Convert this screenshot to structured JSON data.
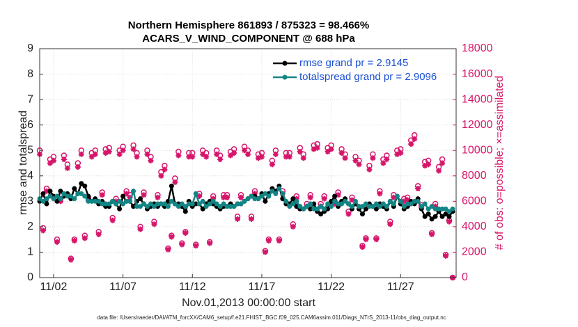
{
  "chart_data": {
    "type": "line",
    "title": "Northern Hemisphere 861893 / 875323 = 98.466%",
    "subtitle": "ACARS_V_WIND_COMPONENT @ 688 hPa",
    "xlabel": "Nov.01,2013 00:00:00 start",
    "ylabel": "rmse and totalspread",
    "y2label": "# of obs: o=possible; ×=assimilated",
    "footnote": "data file: /Users/raeder/DAI/ATM_forcXX/CAM6_setup/f.e21.FHIST_BGC.f09_025.CAM6assim.011/Diags_NTrS_2013-11/obs_diag_output.nc",
    "xlim": [
      1,
      31
    ],
    "xticks": [
      {
        "value": 2,
        "label": "11/02"
      },
      {
        "value": 7,
        "label": "11/07"
      },
      {
        "value": 12,
        "label": "11/12"
      },
      {
        "value": 17,
        "label": "11/17"
      },
      {
        "value": 22,
        "label": "11/22"
      },
      {
        "value": 27,
        "label": "11/27"
      }
    ],
    "ylim": [
      0,
      9
    ],
    "yticks": [
      0,
      1,
      2,
      3,
      4,
      5,
      6,
      7,
      8,
      9
    ],
    "y2lim": [
      0,
      18000
    ],
    "y2ticks": [
      0,
      2000,
      4000,
      6000,
      8000,
      10000,
      12000,
      14000,
      16000,
      18000
    ],
    "y2color": "#d6166b",
    "grid": true,
    "legend": "upper right",
    "x": [
      1,
      1.25,
      1.5,
      1.75,
      2,
      2.25,
      2.5,
      2.75,
      3,
      3.25,
      3.5,
      3.75,
      4,
      4.25,
      4.5,
      4.75,
      5,
      5.25,
      5.5,
      5.75,
      6,
      6.25,
      6.5,
      6.75,
      7,
      7.25,
      7.5,
      7.75,
      8,
      8.25,
      8.5,
      8.75,
      9,
      9.25,
      9.5,
      9.75,
      10,
      10.25,
      10.5,
      10.75,
      11,
      11.25,
      11.5,
      11.75,
      12,
      12.25,
      12.5,
      12.75,
      13,
      13.25,
      13.5,
      13.75,
      14,
      14.25,
      14.5,
      14.75,
      15,
      15.25,
      15.5,
      15.75,
      16,
      16.25,
      16.5,
      16.75,
      17,
      17.25,
      17.5,
      17.75,
      18,
      18.25,
      18.5,
      18.75,
      19,
      19.25,
      19.5,
      19.75,
      20,
      20.25,
      20.5,
      20.75,
      21,
      21.25,
      21.5,
      21.75,
      22,
      22.25,
      22.5,
      22.75,
      23,
      23.25,
      23.5,
      23.75,
      24,
      24.25,
      24.5,
      24.75,
      25,
      25.25,
      25.5,
      25.75,
      26,
      26.25,
      26.5,
      26.75,
      27,
      27.25,
      27.5,
      27.75,
      28,
      28.25,
      28.5,
      28.75,
      29,
      29.25,
      29.5,
      29.75,
      30,
      30.25,
      30.5,
      30.75
    ],
    "series": [
      {
        "name": "rmse grand pr = 2.9145",
        "color": "#000000",
        "marker": "dot",
        "values": [
          3.0,
          3.3,
          2.9,
          3.4,
          3.2,
          3.0,
          3.4,
          3.2,
          3.3,
          3.1,
          3.5,
          3.3,
          3.7,
          3.6,
          3.2,
          3.0,
          3.1,
          2.9,
          3.0,
          2.8,
          2.8,
          3.0,
          2.9,
          2.7,
          3.2,
          3.0,
          3.0,
          2.8,
          3.0,
          3.1,
          2.9,
          2.7,
          2.8,
          2.9,
          2.8,
          2.9,
          2.8,
          3.0,
          3.6,
          2.9,
          2.9,
          2.8,
          2.6,
          3.0,
          2.8,
          2.9,
          2.9,
          2.7,
          2.9,
          3.0,
          2.9,
          2.8,
          2.7,
          2.8,
          2.8,
          2.9,
          2.8,
          2.9,
          2.9,
          3.0,
          3.1,
          3.2,
          3.2,
          3.1,
          3.3,
          3.0,
          3.3,
          3.5,
          3.4,
          3.6,
          3.1,
          2.9,
          2.9,
          3.1,
          2.8,
          2.7,
          2.7,
          2.8,
          2.7,
          2.9,
          2.6,
          2.5,
          2.6,
          2.7,
          3.0,
          3.2,
          2.8,
          3.0,
          3.1,
          2.9,
          2.7,
          2.9,
          2.7,
          2.5,
          2.7,
          2.9,
          2.8,
          2.7,
          2.9,
          2.8,
          2.7,
          3.0,
          2.8,
          3.2,
          2.9,
          2.7,
          2.8,
          3.0,
          2.9,
          3.1,
          2.7,
          2.4,
          2.5,
          2.3,
          2.4,
          2.6,
          2.4,
          2.5,
          2.4,
          2.6
        ]
      },
      {
        "name": "totalspread grand pr = 2.9096",
        "color": "#128585",
        "marker": "dot",
        "values": [
          3.1,
          3.0,
          3.1,
          3.2,
          3.1,
          3.2,
          3.1,
          3.3,
          3.2,
          3.2,
          3.1,
          3.3,
          3.3,
          3.2,
          3.0,
          3.0,
          3.0,
          3.0,
          2.9,
          2.9,
          2.9,
          3.0,
          2.9,
          3.0,
          2.9,
          3.0,
          3.0,
          3.4,
          2.8,
          2.8,
          2.9,
          2.8,
          2.9,
          2.8,
          2.9,
          2.9,
          2.9,
          2.8,
          3.0,
          2.9,
          2.8,
          2.9,
          2.8,
          2.9,
          2.9,
          3.3,
          2.9,
          3.0,
          2.8,
          2.9,
          3.0,
          2.9,
          2.8,
          2.9,
          2.8,
          2.8,
          2.8,
          2.9,
          2.9,
          3.0,
          3.1,
          3.2,
          3.1,
          3.1,
          3.2,
          3.3,
          3.2,
          3.4,
          3.3,
          3.5,
          3.3,
          3.0,
          2.8,
          2.9,
          3.0,
          2.8,
          2.7,
          2.8,
          2.9,
          2.7,
          2.7,
          2.8,
          2.7,
          2.9,
          2.8,
          3.0,
          2.9,
          2.9,
          3.0,
          2.9,
          2.8,
          3.0,
          2.8,
          2.8,
          2.9,
          2.8,
          2.8,
          2.9,
          2.8,
          2.9,
          2.8,
          3.0,
          2.9,
          3.2,
          3.0,
          2.8,
          2.9,
          2.9,
          3.0,
          3.0,
          2.8,
          2.9,
          2.7,
          2.8,
          2.7,
          2.7,
          2.7,
          2.7,
          2.6,
          2.7
        ]
      },
      {
        "color": "#d6166b",
        "marker": "o",
        "axis": "y2",
        "values": [
          10000,
          3900,
          7000,
          9300,
          9500,
          3000,
          6200,
          9600,
          8900,
          1500,
          3000,
          9000,
          10000,
          3300,
          6300,
          9800,
          10000,
          3600,
          6700,
          10100,
          10200,
          4700,
          6200,
          10000,
          10300,
          6800,
          6500,
          10400,
          9800,
          4000,
          6700,
          10000,
          9500,
          4400,
          6500,
          8300,
          8800,
          2300,
          3300,
          7800,
          9900,
          2700,
          3600,
          9800,
          9800,
          2600,
          6600,
          10000,
          9800,
          2800,
          6400,
          10000,
          9600,
          6500,
          6500,
          9900,
          10100,
          4800,
          6500,
          10300,
          10000,
          4800,
          6800,
          9700,
          9800,
          2100,
          3000,
          9200,
          10000,
          3000,
          6800,
          9800,
          9800,
          4200,
          6400,
          10200,
          9700,
          5800,
          6500,
          10400,
          10500,
          5800,
          6400,
          10200,
          10400,
          6000,
          6700,
          10100,
          9700,
          5200,
          6300,
          9500,
          9200,
          2500,
          3100,
          8800,
          9700,
          3100,
          6800,
          9300,
          9600,
          4400,
          6500,
          10000,
          10100,
          6200,
          6300,
          10800,
          11200,
          7200,
          5700,
          9100,
          9200,
          3500,
          5800,
          8700,
          9300,
          1800,
          4500,
          0
        ]
      },
      {
        "color": "#d6166b",
        "marker": "x",
        "axis": "y2",
        "values": [
          9700,
          3700,
          6800,
          9000,
          9200,
          2800,
          6000,
          9300,
          8600,
          1400,
          2900,
          8700,
          9700,
          3100,
          6100,
          9500,
          9700,
          3400,
          6500,
          9800,
          9900,
          4500,
          6000,
          9700,
          10000,
          6600,
          6300,
          10100,
          9500,
          3800,
          6500,
          9700,
          9200,
          4200,
          6300,
          8000,
          8500,
          2200,
          3200,
          7500,
          9600,
          2600,
          3500,
          9500,
          9500,
          2500,
          6400,
          9700,
          9500,
          2700,
          6200,
          9700,
          9300,
          6300,
          6300,
          9600,
          9800,
          4600,
          6300,
          10000,
          9700,
          4600,
          6600,
          9400,
          9500,
          2000,
          2900,
          8900,
          9700,
          2900,
          6600,
          9500,
          9500,
          4000,
          6200,
          9900,
          9400,
          5600,
          6300,
          10100,
          10200,
          5600,
          6200,
          9900,
          10100,
          5800,
          6500,
          9800,
          9400,
          5000,
          6100,
          9200,
          8900,
          2400,
          3000,
          8500,
          9400,
          3000,
          6600,
          9000,
          9300,
          4200,
          6300,
          9700,
          9800,
          6000,
          6100,
          10500,
          10900,
          7000,
          5500,
          8800,
          8900,
          3400,
          5600,
          8400,
          9000,
          1700,
          4400,
          0
        ]
      }
    ]
  }
}
